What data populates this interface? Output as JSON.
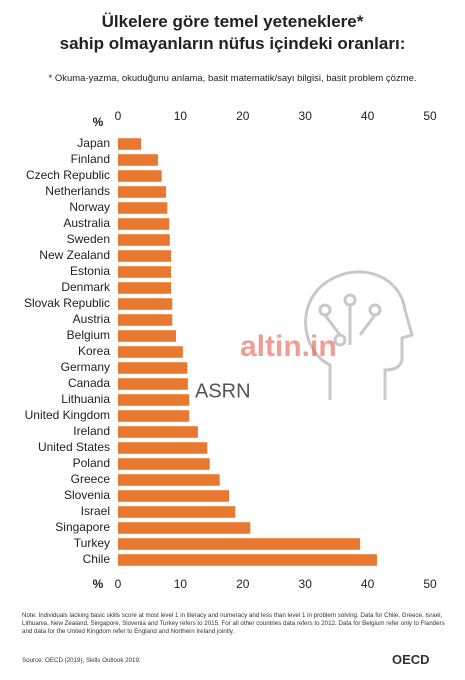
{
  "chart_data": {
    "type": "bar",
    "orientation": "horizontal",
    "title_lines": [
      "Ülkelere göre temel yeteneklere*",
      "sahip olmayanların nüfus içindeki oranları:"
    ],
    "subtitle": "* Okuma-yazma, okuduğunu anlama, basit matematik/sayı bilgisi, basit problem çözme.",
    "unit_label": "%",
    "categories": [
      "Japan",
      "Finland",
      "Czech Republic",
      "Netherlands",
      "Norway",
      "Australia",
      "Sweden",
      "New Zealand",
      "Estonia",
      "Denmark",
      "Slovak Republic",
      "Austria",
      "Belgium",
      "Korea",
      "Germany",
      "Canada",
      "Lithuania",
      "United Kingdom",
      "Ireland",
      "United States",
      "Poland",
      "Greece",
      "Slovenia",
      "Israel",
      "Singapore",
      "Turkey",
      "Chile"
    ],
    "values": [
      3.7,
      6.4,
      7.0,
      7.7,
      7.9,
      8.2,
      8.3,
      8.5,
      8.5,
      8.5,
      8.7,
      8.7,
      9.3,
      10.4,
      11.1,
      11.2,
      11.4,
      11.4,
      12.8,
      14.3,
      14.7,
      16.3,
      17.8,
      18.8,
      21.2,
      38.8,
      41.5
    ],
    "color": "#e8782f",
    "xlim": [
      0,
      50
    ],
    "xticks": [
      0,
      10,
      20,
      30,
      40,
      50
    ],
    "note": "Note: Individuals lacking basic skills score at most level 1 in literacy and numeracy and less than level 1 in problem solving. Data for Chile, Greece, Israel, Lithuania, New Zealand, Singapore, Slovenia and Turkey refers to 2015. For all other countries data refers to 2012. Data for Belgium refer only to Flanders and data for the United Kingdom refer to England and Northern Ireland jointly.",
    "source": "Source: OECD (2019), Skills Outlook 2019.",
    "logo": "OECD",
    "watermarks": [
      "altin.in",
      "ASRN"
    ]
  }
}
